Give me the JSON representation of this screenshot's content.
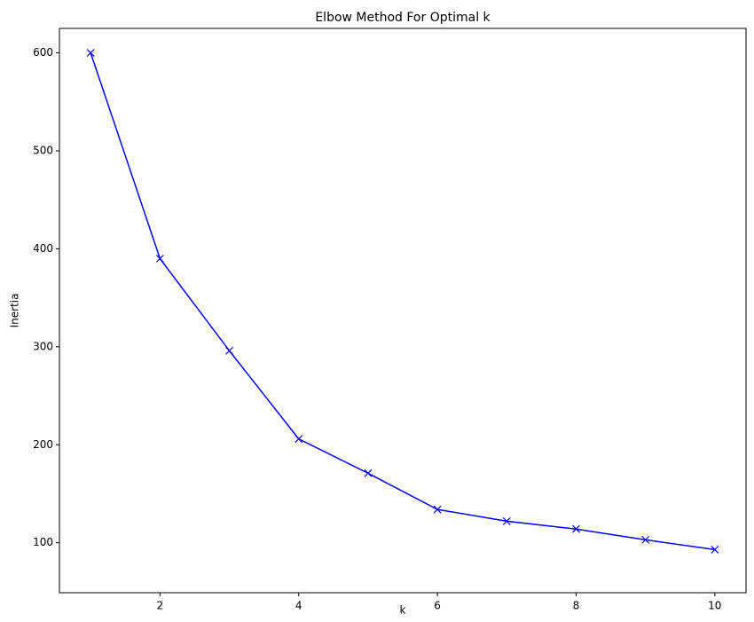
{
  "chart_data": {
    "type": "line",
    "title": "Elbow Method For Optimal k",
    "x_label": "k",
    "y_label": "Inertia",
    "x": [
      1,
      2,
      3,
      4,
      5,
      6,
      7,
      8,
      9,
      10
    ],
    "values": [
      600,
      390,
      296,
      206,
      171,
      134,
      122,
      114,
      103,
      93
    ],
    "color": "#0000ff",
    "marker": "x",
    "xlim": [
      0.55,
      10.45
    ],
    "xticks": [
      2,
      4,
      6,
      8,
      10
    ],
    "ylim": [
      49,
      625
    ],
    "yticks": [
      100,
      200,
      300,
      400,
      500,
      600
    ],
    "grid": false
  }
}
